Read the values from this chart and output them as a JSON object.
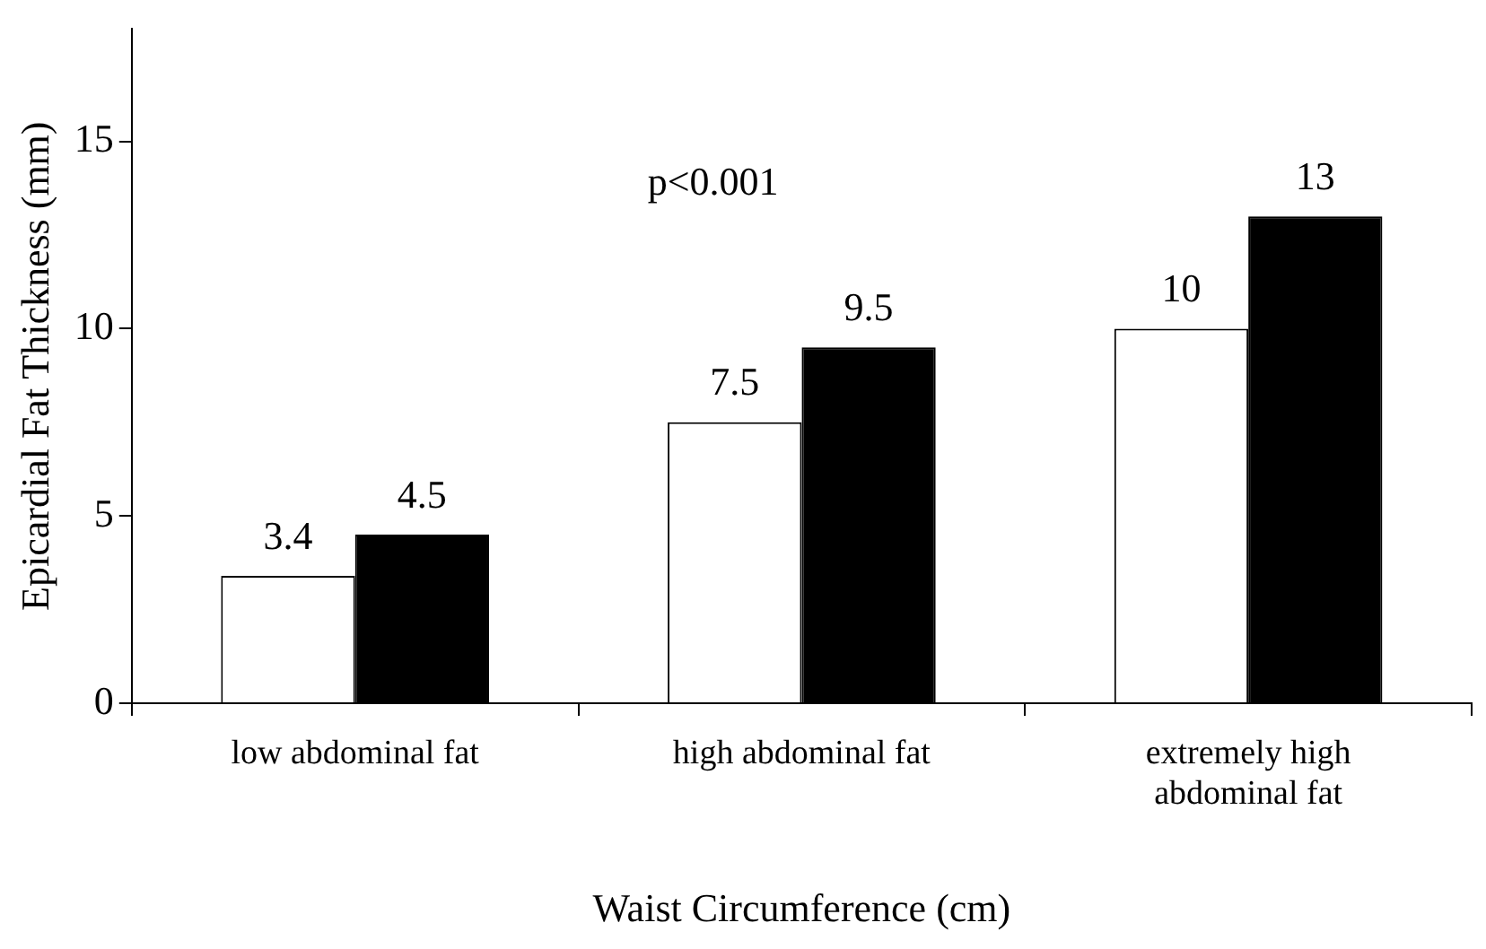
{
  "chart_data": {
    "type": "bar",
    "xlabel": "Waist Circumference (cm)",
    "ylabel": "Epicardial Fat Thickness (mm)",
    "categories": [
      "low abdominal fat",
      "high abdominal fat",
      "extremely high abdominal fat"
    ],
    "series": [
      {
        "color": "#ffffff",
        "values": [
          3.4,
          7.5,
          10
        ]
      },
      {
        "color": "#000000",
        "values": [
          4.5,
          9.5,
          13
        ]
      }
    ],
    "ylim": [
      0,
      18
    ],
    "yticks": [
      0,
      5,
      10,
      15
    ],
    "grid": false,
    "legend": false,
    "data_labels": true,
    "annotations": [
      "p<0.001"
    ]
  }
}
